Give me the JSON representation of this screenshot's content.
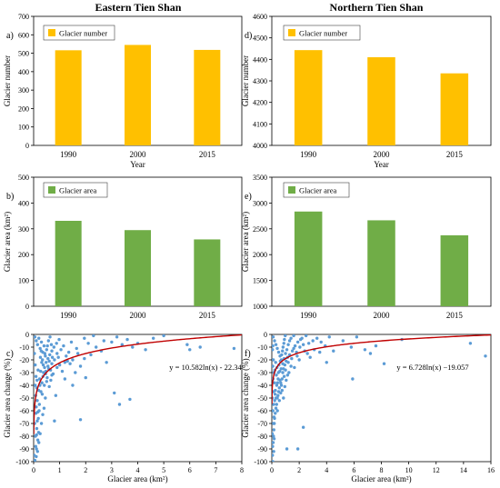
{
  "column_titles": {
    "left": "Eastern Tien Shan",
    "right": "Northern Tien Shan"
  },
  "colors": {
    "number_bar": "#FFC000",
    "area_bar": "#70AD47",
    "scatter_point": "#5B9BD5",
    "fit_line": "#C00000"
  },
  "chart_data": [
    {
      "id": "a",
      "panel_label": "a)",
      "type": "bar",
      "categories": [
        "1990",
        "2000",
        "2015"
      ],
      "series": [
        {
          "name": "Glacier number",
          "values": [
            516,
            545,
            518
          ]
        }
      ],
      "xlabel": "Year",
      "ylabel": "Glacier number",
      "ylim": [
        0,
        700
      ],
      "yticks": [
        0,
        100,
        200,
        300,
        400,
        500,
        600,
        700
      ],
      "legend": "top-left",
      "grid": false
    },
    {
      "id": "d",
      "panel_label": "d)",
      "type": "bar",
      "categories": [
        "1990",
        "2000",
        "2015"
      ],
      "series": [
        {
          "name": "Glacier number",
          "values": [
            4443,
            4410,
            4335
          ]
        }
      ],
      "xlabel": "Year",
      "ylabel": "Glacier number",
      "ylim": [
        4000,
        4600
      ],
      "yticks": [
        4000,
        4100,
        4200,
        4300,
        4400,
        4500,
        4600
      ],
      "legend": "top-left",
      "grid": false
    },
    {
      "id": "b",
      "panel_label": "b)",
      "type": "bar",
      "categories": [
        "1990",
        "2000",
        "2015"
      ],
      "series": [
        {
          "name": "Glacier area",
          "values": [
            331,
            295,
            259
          ]
        }
      ],
      "xlabel": "",
      "ylabel": "Glacier area (km²)",
      "ylim": [
        0,
        500
      ],
      "yticks": [
        0,
        100,
        200,
        300,
        400,
        500
      ],
      "legend": "top-left",
      "grid": false
    },
    {
      "id": "e",
      "panel_label": "e)",
      "type": "bar",
      "categories": [
        "1990",
        "2000",
        "2015"
      ],
      "series": [
        {
          "name": "Glacier area",
          "values": [
            2835,
            2665,
            2375
          ]
        }
      ],
      "xlabel": "",
      "ylabel": "Glacier area (km²)",
      "ylim": [
        1000,
        3500
      ],
      "yticks": [
        1000,
        1500,
        2000,
        2500,
        3000,
        3500
      ],
      "legend": "top-left",
      "grid": false
    },
    {
      "id": "c",
      "panel_label": "c)",
      "type": "scatter",
      "xlabel": "Glacier area (km²)",
      "ylabel": "Glacier area change (%)",
      "xlim": [
        0,
        8
      ],
      "xticks": [
        0,
        1,
        2,
        3,
        4,
        5,
        6,
        7,
        8
      ],
      "ylim": [
        -100,
        0
      ],
      "yticks": [
        0,
        -10,
        -20,
        -30,
        -40,
        -50,
        -60,
        -70,
        -80,
        -90,
        -100
      ],
      "fit": {
        "type": "log",
        "a": 10.582,
        "b": -22.34,
        "label": "y = 10.582ln(x) - 22.34"
      },
      "points": [
        [
          1.95,
          -3
        ],
        [
          2.3,
          -1
        ],
        [
          2.7,
          -5
        ],
        [
          3.2,
          -2
        ],
        [
          3.4,
          -8
        ],
        [
          3.6,
          -4
        ],
        [
          4.0,
          -7
        ],
        [
          4.6,
          -3
        ],
        [
          5.0,
          -1
        ],
        [
          6.0,
          -12
        ],
        [
          6.4,
          -10
        ],
        [
          7.7,
          -11
        ],
        [
          5.9,
          -8
        ],
        [
          4.3,
          -12
        ],
        [
          3.8,
          -10
        ],
        [
          3.0,
          -6
        ],
        [
          2.6,
          -13
        ],
        [
          2.2,
          -16
        ],
        [
          1.95,
          -19
        ],
        [
          1.7,
          -15
        ],
        [
          1.5,
          -20
        ],
        [
          1.3,
          -21
        ],
        [
          1.2,
          -22
        ],
        [
          1.0,
          -24
        ],
        [
          0.9,
          -26
        ],
        [
          0.95,
          -18
        ],
        [
          1.1,
          -29
        ],
        [
          1.25,
          -17
        ],
        [
          1.4,
          -23
        ],
        [
          1.6,
          -30
        ],
        [
          1.8,
          -25
        ],
        [
          2.0,
          -34
        ],
        [
          2.4,
          -10
        ],
        [
          2.8,
          -22
        ],
        [
          3.1,
          -46
        ],
        [
          3.3,
          -55
        ],
        [
          3.7,
          -51
        ],
        [
          1.8,
          -67
        ],
        [
          0.8,
          -68
        ],
        [
          1.2,
          -35
        ],
        [
          1.5,
          -40
        ],
        [
          0.7,
          -32
        ],
        [
          0.85,
          -48
        ],
        [
          0.6,
          -41
        ],
        [
          0.5,
          -37
        ],
        [
          0.45,
          -50
        ],
        [
          0.4,
          -58
        ],
        [
          0.35,
          -63
        ],
        [
          0.3,
          -70
        ],
        [
          0.25,
          -78
        ],
        [
          0.2,
          -85
        ],
        [
          0.15,
          -92
        ],
        [
          0.1,
          -96
        ],
        [
          0.05,
          -99
        ],
        [
          0.08,
          -88
        ],
        [
          0.12,
          -74
        ],
        [
          0.18,
          -66
        ],
        [
          0.22,
          -55
        ],
        [
          0.28,
          -45
        ],
        [
          0.32,
          -38
        ],
        [
          0.38,
          -30
        ],
        [
          0.42,
          -26
        ],
        [
          0.48,
          -22
        ],
        [
          0.55,
          -19
        ],
        [
          0.62,
          -16
        ],
        [
          0.7,
          -13
        ],
        [
          0.78,
          -10
        ],
        [
          0.88,
          -7
        ],
        [
          0.98,
          -4
        ],
        [
          0.05,
          -2
        ],
        [
          0.1,
          -5
        ],
        [
          0.15,
          -8
        ],
        [
          0.2,
          -3
        ],
        [
          0.25,
          -11
        ],
        [
          0.3,
          -6
        ],
        [
          0.35,
          -14
        ],
        [
          0.4,
          -9
        ],
        [
          0.45,
          -17
        ],
        [
          0.5,
          -12
        ],
        [
          0.55,
          -25
        ],
        [
          0.6,
          -21
        ],
        [
          0.65,
          -28
        ],
        [
          0.7,
          -23
        ],
        [
          0.75,
          -31
        ],
        [
          0.8,
          -20
        ],
        [
          0.03,
          -15
        ],
        [
          0.06,
          -24
        ],
        [
          0.09,
          -33
        ],
        [
          0.12,
          -42
        ],
        [
          0.14,
          -52
        ],
        [
          0.16,
          -61
        ],
        [
          0.04,
          -70
        ],
        [
          0.07,
          -80
        ],
        [
          0.11,
          -90
        ],
        [
          0.02,
          -95
        ],
        [
          0.13,
          -36
        ],
        [
          0.17,
          -28
        ],
        [
          0.19,
          -44
        ],
        [
          0.23,
          -35
        ],
        [
          0.27,
          -29
        ],
        [
          0.31,
          -22
        ],
        [
          0.33,
          -47
        ],
        [
          0.36,
          -33
        ],
        [
          0.41,
          -40
        ],
        [
          0.46,
          -31
        ],
        [
          0.52,
          -34
        ],
        [
          0.58,
          -27
        ],
        [
          0.66,
          -36
        ],
        [
          0.72,
          -18
        ],
        [
          0.9,
          -15
        ],
        [
          1.05,
          -12
        ],
        [
          1.15,
          -9
        ],
        [
          1.35,
          -14
        ],
        [
          1.45,
          -6
        ],
        [
          1.65,
          -11
        ],
        [
          2.1,
          -7
        ],
        [
          0.26,
          -18
        ],
        [
          0.29,
          -13
        ],
        [
          0.34,
          -20
        ],
        [
          0.37,
          -24
        ],
        [
          0.43,
          -15
        ],
        [
          0.47,
          -29
        ],
        [
          0.53,
          -9
        ],
        [
          0.57,
          -5
        ],
        [
          0.63,
          -2
        ],
        [
          0.68,
          -8
        ],
        [
          0.06,
          -40
        ],
        [
          0.08,
          -48
        ],
        [
          0.1,
          -57
        ],
        [
          0.14,
          -68
        ],
        [
          0.21,
          -60
        ],
        [
          0.24,
          -40
        ],
        [
          0.09,
          -62
        ],
        [
          0.11,
          -79
        ],
        [
          0.16,
          -83
        ],
        [
          0.19,
          -77
        ]
      ]
    },
    {
      "id": "f",
      "panel_label": "f)",
      "type": "scatter",
      "xlabel": "Glacier area (km²)",
      "ylabel": "Glacier area change (%)",
      "xlim": [
        0,
        16
      ],
      "xticks": [
        0,
        2,
        4,
        6,
        8,
        10,
        12,
        14,
        16
      ],
      "ylim": [
        -100,
        0
      ],
      "yticks": [
        0,
        -10,
        -20,
        -30,
        -40,
        -50,
        -60,
        -70,
        -80,
        -90,
        -100
      ],
      "fit": {
        "type": "log",
        "a": 6.728,
        "b": -19.057,
        "label": "y = 6.728ln(x) −19.057"
      },
      "points": [
        [
          14.5,
          -7
        ],
        [
          15.6,
          -17
        ],
        [
          9.5,
          -4
        ],
        [
          8.2,
          -23
        ],
        [
          7.6,
          -9
        ],
        [
          6.8,
          -12
        ],
        [
          5.8,
          -10
        ],
        [
          5.9,
          -35
        ],
        [
          4.0,
          -22
        ],
        [
          4.2,
          -2
        ],
        [
          3.6,
          -6
        ],
        [
          3.1,
          -12
        ],
        [
          2.8,
          -18
        ],
        [
          2.6,
          -15
        ],
        [
          2.3,
          -8
        ],
        [
          2.1,
          -4
        ],
        [
          2.0,
          -20
        ],
        [
          1.8,
          -14
        ],
        [
          1.6,
          -11
        ],
        [
          1.4,
          -25
        ],
        [
          1.2,
          -22
        ],
        [
          2.3,
          -73
        ],
        [
          1.9,
          -90
        ],
        [
          1.1,
          -90
        ],
        [
          1.0,
          -28
        ],
        [
          0.9,
          -33
        ],
        [
          0.8,
          -30
        ],
        [
          0.7,
          -40
        ],
        [
          0.6,
          -36
        ],
        [
          0.5,
          -45
        ],
        [
          0.4,
          -50
        ],
        [
          0.3,
          -58
        ],
        [
          0.2,
          -66
        ],
        [
          0.15,
          -75
        ],
        [
          0.1,
          -85
        ],
        [
          0.05,
          -95
        ],
        [
          0.08,
          -100
        ],
        [
          0.12,
          -80
        ],
        [
          0.18,
          -70
        ],
        [
          0.25,
          -62
        ],
        [
          0.35,
          -55
        ],
        [
          0.45,
          -48
        ],
        [
          0.55,
          -42
        ],
        [
          0.65,
          -38
        ],
        [
          0.75,
          -35
        ],
        [
          0.85,
          -27
        ],
        [
          0.95,
          -24
        ],
        [
          1.05,
          -21
        ],
        [
          1.15,
          -18
        ],
        [
          1.3,
          -16
        ],
        [
          1.5,
          -13
        ],
        [
          1.7,
          -9
        ],
        [
          1.9,
          -6
        ],
        [
          2.2,
          -3
        ],
        [
          2.5,
          -1
        ],
        [
          3.0,
          -5
        ],
        [
          3.5,
          -14
        ],
        [
          0.1,
          -2
        ],
        [
          0.2,
          -5
        ],
        [
          0.3,
          -8
        ],
        [
          0.4,
          -11
        ],
        [
          0.5,
          -14
        ],
        [
          0.6,
          -17
        ],
        [
          0.7,
          -20
        ],
        [
          0.8,
          -23
        ],
        [
          0.9,
          -19
        ],
        [
          1.0,
          -15
        ],
        [
          1.1,
          -12
        ],
        [
          1.2,
          -8
        ],
        [
          1.3,
          -5
        ],
        [
          1.4,
          -3
        ],
        [
          1.6,
          -1
        ],
        [
          0.05,
          -12
        ],
        [
          0.07,
          -25
        ],
        [
          0.09,
          -35
        ],
        [
          0.11,
          -45
        ],
        [
          0.13,
          -55
        ],
        [
          0.16,
          -65
        ],
        [
          0.03,
          -78
        ],
        [
          0.06,
          -88
        ],
        [
          0.14,
          -92
        ],
        [
          0.22,
          -28
        ],
        [
          0.28,
          -22
        ],
        [
          0.33,
          -32
        ],
        [
          0.38,
          -26
        ],
        [
          0.42,
          -38
        ],
        [
          0.48,
          -30
        ],
        [
          0.52,
          -24
        ],
        [
          0.58,
          -29
        ],
        [
          0.62,
          -21
        ],
        [
          0.68,
          -27
        ],
        [
          0.72,
          -16
        ],
        [
          0.78,
          -13
        ],
        [
          0.82,
          -10
        ],
        [
          0.88,
          -7
        ],
        [
          0.92,
          -4
        ],
        [
          0.98,
          -1
        ],
        [
          1.25,
          -30
        ],
        [
          1.45,
          -19
        ],
        [
          1.65,
          -26
        ],
        [
          1.85,
          -17
        ],
        [
          2.05,
          -10
        ],
        [
          2.4,
          -13
        ],
        [
          2.7,
          -7
        ],
        [
          0.26,
          -44
        ],
        [
          0.31,
          -50
        ],
        [
          0.36,
          -40
        ],
        [
          0.41,
          -60
        ],
        [
          0.46,
          -35
        ],
        [
          0.04,
          -50
        ],
        [
          0.08,
          -60
        ],
        [
          0.12,
          -70
        ],
        [
          0.17,
          -82
        ],
        [
          0.21,
          -52
        ],
        [
          0.24,
          -47
        ],
        [
          0.19,
          -38
        ],
        [
          0.15,
          -30
        ],
        [
          0.11,
          -20
        ],
        [
          0.07,
          -9
        ],
        [
          3.3,
          -3
        ],
        [
          3.9,
          -9
        ],
        [
          4.5,
          -13
        ],
        [
          5.2,
          -5
        ],
        [
          6.2,
          -2
        ],
        [
          7.2,
          -15
        ],
        [
          0.55,
          -52
        ],
        [
          0.65,
          -46
        ],
        [
          0.75,
          -44
        ],
        [
          0.85,
          -50
        ],
        [
          0.95,
          -41
        ],
        [
          1.05,
          -36
        ],
        [
          1.15,
          -32
        ]
      ]
    }
  ]
}
